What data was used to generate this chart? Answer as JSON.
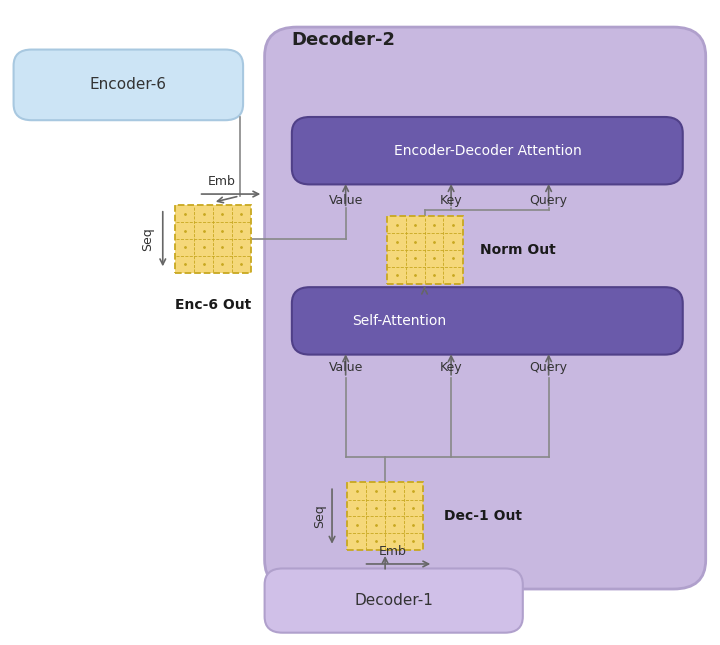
{
  "bg_color": "#ffffff",
  "decoder2_color": "#c8b8e0",
  "decoder2_edge": "#b0a0cc",
  "encoder6_color": "#cce4f5",
  "encoder6_edge": "#a8c8e0",
  "decoder1_color": "#d0c0e8",
  "decoder1_edge": "#b0a0cc",
  "attn_box_color": "#6a5aaa",
  "attn_box_edge": "#504088",
  "matrix_face": "#f5d87a",
  "matrix_edge": "#c8a820",
  "arrow_color": "#666666",
  "line_color": "#888888",
  "enc6_label": "Encoder-6",
  "dec1_label": "Decoder-1",
  "dec2_label": "Decoder-2",
  "enc_dec_label": "Encoder-Decoder Attention",
  "self_attn_label": "Self-Attention",
  "enc6_out_label": "Enc-6 Out",
  "norm_out_label": "Norm Out",
  "dec1_out_label": "Dec-1 Out",
  "emb_label": "Emb",
  "seq_label": "Seq",
  "value_label": "Value",
  "key_label": "Key",
  "query_label": "Query"
}
